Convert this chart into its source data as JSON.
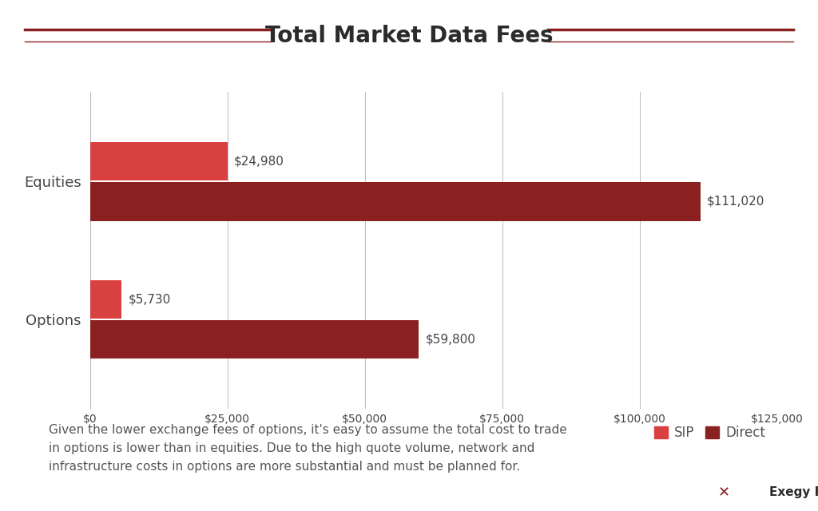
{
  "title": "Total Market Data Fees",
  "title_color": "#2b2b2b",
  "title_fontsize": 20,
  "title_fontweight": "bold",
  "background_color": "#ffffff",
  "categories": [
    "Equities",
    "Options"
  ],
  "sip_values": [
    24980,
    5730
  ],
  "direct_values": [
    111020,
    59800
  ],
  "sip_color": "#d94040",
  "direct_color": "#8b2020",
  "xlim": [
    0,
    125000
  ],
  "xticks": [
    0,
    25000,
    50000,
    75000,
    100000,
    125000
  ],
  "xticklabels": [
    "$0",
    "$25,000",
    "$50,000",
    "$75,000",
    "$100,000",
    "$125,000"
  ],
  "grid_color": "#bbbbbb",
  "axis_color": "#444444",
  "tick_color": "#444444",
  "annotation_text": "Given the lower exchange fees of options, it's easy to assume the total cost to trade\nin options is lower than in equities. Due to the high quote volume, network and\ninfrastructure costs in options are more substantial and must be planned for.",
  "annotation_color": "#555555",
  "annotation_fontsize": 11,
  "legend_sip_label": "SIP",
  "legend_direct_label": "Direct",
  "title_line_color": "#8b2020",
  "label_fontsize": 11,
  "label_color": "#444444",
  "yticklabel_fontsize": 13,
  "xticklabel_fontsize": 10
}
